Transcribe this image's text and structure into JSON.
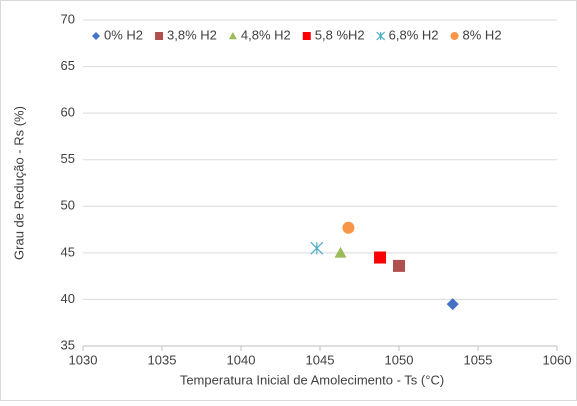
{
  "chart_data": {
    "type": "scatter",
    "xlabel": "Temperatura Inicial de Amolecimento - Ts (°C)",
    "ylabel": "Grau de Redução - Rs (%)",
    "xlim": [
      1030,
      1060
    ],
    "xticks": [
      1030,
      1035,
      1040,
      1045,
      1050,
      1055,
      1060
    ],
    "ylim": [
      35,
      70
    ],
    "yticks": [
      35,
      40,
      45,
      50,
      55,
      60,
      65,
      70
    ],
    "grid": true,
    "legend": "top",
    "series": [
      {
        "name": "0% H2",
        "color": "#4472c4",
        "marker": "diamond",
        "x": [
          1053.4
        ],
        "values": [
          39.5
        ]
      },
      {
        "name": "3,8% H2",
        "color": "#b0504e",
        "marker": "square",
        "x": [
          1050
        ],
        "values": [
          43.6
        ]
      },
      {
        "name": "4,8% H2",
        "color": "#9bbb59",
        "marker": "triangle",
        "x": [
          1046.3
        ],
        "values": [
          45
        ]
      },
      {
        "name": "5,8 %H2",
        "color": "#ff0000",
        "marker": "square",
        "x": [
          1048.8
        ],
        "values": [
          44.5
        ]
      },
      {
        "name": "6,8% H2",
        "color": "#4bacc6",
        "marker": "star",
        "x": [
          1044.8
        ],
        "values": [
          45.5
        ]
      },
      {
        "name": "8% H2",
        "color": "#f79646",
        "marker": "circle",
        "x": [
          1046.8
        ],
        "values": [
          47.7
        ]
      }
    ]
  }
}
